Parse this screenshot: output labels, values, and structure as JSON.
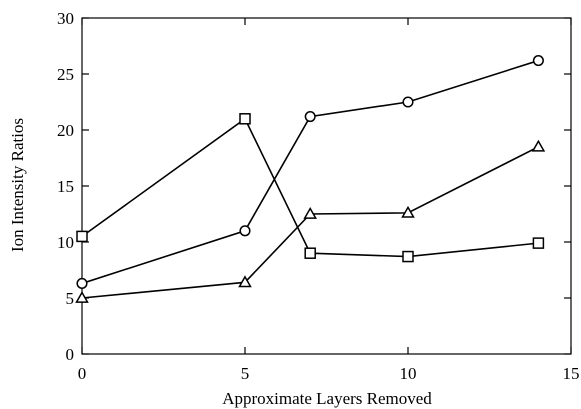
{
  "chart_data": {
    "type": "line",
    "xlabel": "Approximate Layers Removed",
    "ylabel": "Ion Intensity Ratios",
    "xlim": [
      0,
      15
    ],
    "ylim": [
      0,
      30
    ],
    "xticks": [
      0,
      5,
      10,
      15
    ],
    "yticks": [
      0,
      5,
      10,
      15,
      20,
      25,
      30
    ],
    "x_tick_labels": [
      "0",
      "5",
      "10",
      "15"
    ],
    "y_tick_labels": [
      "0",
      "5",
      "10",
      "15",
      "20",
      "25",
      "30"
    ],
    "grid": false,
    "legend": "none",
    "series": [
      {
        "marker": "circle",
        "color": "#000000",
        "points": [
          [
            0,
            6.3
          ],
          [
            5,
            11.0
          ],
          [
            7,
            21.2
          ],
          [
            10,
            22.5
          ],
          [
            14,
            26.2
          ]
        ]
      },
      {
        "marker": "square",
        "color": "#000000",
        "points": [
          [
            0,
            10.5
          ],
          [
            5,
            21.0
          ],
          [
            7,
            9.0
          ],
          [
            10,
            8.7
          ],
          [
            14,
            9.9
          ]
        ]
      },
      {
        "marker": "triangle",
        "color": "#000000",
        "points": [
          [
            0,
            5.0
          ],
          [
            5,
            6.4
          ],
          [
            7,
            12.5
          ],
          [
            10,
            12.6
          ],
          [
            14,
            18.5
          ]
        ]
      }
    ]
  }
}
